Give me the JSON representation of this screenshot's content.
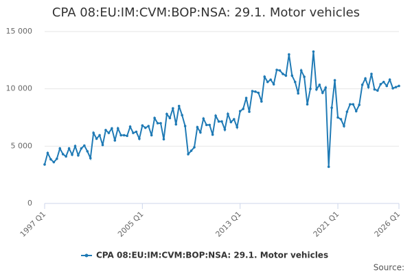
{
  "chart_data": {
    "type": "line",
    "title": "CPA 08:EU:IM:CVM:BOP:NSA: 29.1. Motor vehicles",
    "categories": [
      "1997 Q1",
      null,
      null,
      null,
      null,
      null,
      null,
      null,
      null,
      null,
      null,
      null,
      null,
      null,
      null,
      null,
      null,
      null,
      null,
      null,
      null,
      null,
      null,
      null,
      null,
      null,
      null,
      null,
      null,
      null,
      null,
      null,
      "2005 Q1",
      null,
      null,
      null,
      null,
      null,
      null,
      null,
      null,
      null,
      null,
      null,
      null,
      null,
      null,
      null,
      null,
      null,
      null,
      null,
      null,
      null,
      null,
      null,
      null,
      null,
      null,
      null,
      null,
      null,
      null,
      null,
      "2013 Q1",
      null,
      null,
      null,
      null,
      null,
      null,
      null,
      null,
      null,
      null,
      null,
      null,
      null,
      null,
      null,
      null,
      null,
      null,
      null,
      null,
      null,
      null,
      null,
      null,
      null,
      null,
      null,
      null,
      null,
      null,
      null,
      "2021 Q1",
      null,
      null,
      null,
      null,
      null,
      null,
      null,
      null,
      null,
      null,
      null,
      null,
      null,
      null,
      null,
      null,
      null,
      null,
      null,
      "2026 Q1"
    ],
    "series": [
      {
        "name": "CPA 08:EU:IM:CVM:BOP:NSA: 29.1. Motor vehicles",
        "color": "#1f7ab5",
        "values": [
          3400,
          4400,
          3850,
          3600,
          3900,
          4800,
          4300,
          4100,
          4800,
          4250,
          5000,
          4200,
          4800,
          5050,
          4550,
          3950,
          6150,
          5650,
          5950,
          5100,
          6400,
          6150,
          6550,
          5500,
          6550,
          5950,
          5950,
          5900,
          6700,
          6150,
          6250,
          5650,
          6800,
          6600,
          6750,
          5950,
          7450,
          7000,
          7000,
          5600,
          7800,
          7450,
          8300,
          6900,
          8500,
          7700,
          6750,
          4300,
          4600,
          4900,
          6650,
          6200,
          7400,
          6850,
          6850,
          6000,
          7650,
          7150,
          7150,
          6450,
          7800,
          7100,
          7350,
          6650,
          8050,
          8250,
          9200,
          8000,
          9800,
          9750,
          9650,
          8900,
          11050,
          10600,
          10800,
          10400,
          11650,
          11600,
          11300,
          11150,
          13000,
          11150,
          10600,
          9600,
          11600,
          11050,
          8650,
          10000,
          13250,
          9950,
          10350,
          9650,
          10100,
          3200,
          8350,
          10750,
          7500,
          7350,
          6750,
          8000,
          8650,
          8650,
          8050,
          8600,
          10350,
          10900,
          10150,
          11300,
          9950,
          9850,
          10400,
          10600,
          10250,
          10800,
          10050,
          10150,
          10250
        ]
      }
    ],
    "ylim": [
      0,
      15000
    ],
    "yticks": [
      {
        "value": 0,
        "label": "0"
      },
      {
        "value": 5000,
        "label": "5 000"
      },
      {
        "value": 10000,
        "label": "10 000"
      },
      {
        "value": 15000,
        "label": "15 000"
      }
    ],
    "grid": true,
    "legend": "bottom",
    "source": "Source:"
  }
}
